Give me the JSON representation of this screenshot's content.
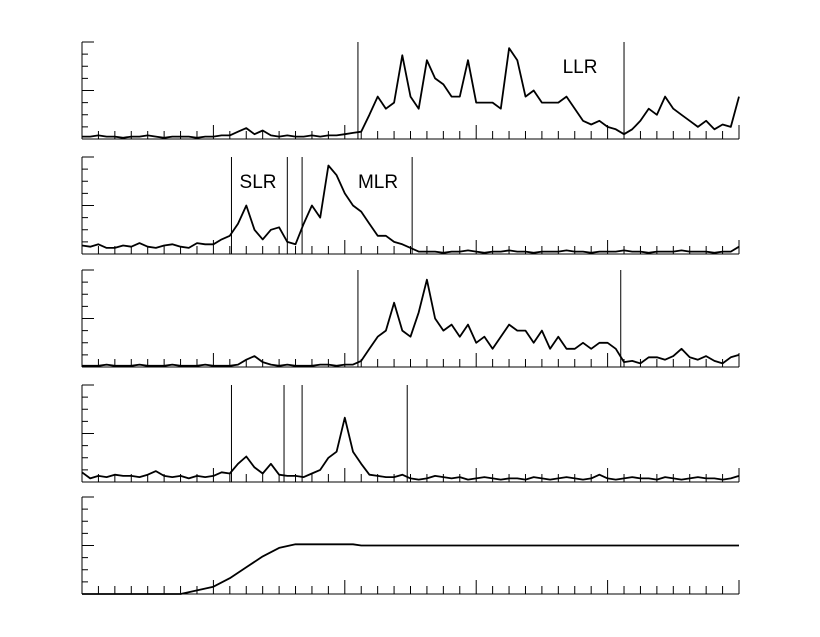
{
  "chart_data": [
    {
      "type": "line",
      "annotations": [
        "LLR"
      ],
      "color": "#000000",
      "markers": [
        16.8,
        33
      ],
      "xlim": [
        0,
        40
      ],
      "ylim": [
        0,
        8
      ],
      "xticks": [
        0,
        1,
        2,
        3,
        4,
        5,
        6,
        7,
        8,
        9,
        10,
        11,
        12,
        13,
        14,
        15,
        16,
        17,
        18,
        19,
        20,
        21,
        22,
        23,
        24,
        25,
        26,
        27,
        28,
        29,
        30,
        31,
        32,
        33,
        34,
        35,
        36,
        37,
        38,
        39,
        40
      ],
      "yticks": [
        0,
        1,
        2,
        3,
        4,
        5,
        6,
        7,
        8
      ],
      "x": [
        0,
        0.5,
        1,
        1.5,
        2,
        2.5,
        3,
        3.5,
        4,
        4.5,
        5,
        5.5,
        6,
        6.5,
        7,
        7.5,
        8,
        8.5,
        9,
        9.5,
        10,
        10.5,
        11,
        11.5,
        12,
        12.5,
        13,
        13.5,
        14,
        14.5,
        15,
        15.5,
        16,
        16.5,
        17,
        17.5,
        18,
        18.5,
        19,
        19.5,
        20,
        20.5,
        21,
        21.5,
        22,
        22.5,
        23,
        23.5,
        24,
        24.5,
        25,
        25.5,
        26,
        26.5,
        27,
        27.5,
        28,
        28.5,
        29,
        29.5,
        30,
        30.5,
        31,
        31.5,
        32,
        32.5,
        33,
        33.5,
        34,
        34.5,
        35,
        35.5,
        36,
        36.5,
        37,
        37.5,
        38,
        38.5,
        39,
        39.5,
        40
      ],
      "values": [
        0.2,
        0.2,
        0.3,
        0.2,
        0.2,
        0.1,
        0.2,
        0.2,
        0.3,
        0.2,
        0.1,
        0.2,
        0.2,
        0.2,
        0.1,
        0.2,
        0.2,
        0.3,
        0.3,
        0.6,
        0.9,
        0.4,
        0.7,
        0.3,
        0.2,
        0.3,
        0.2,
        0.2,
        0.3,
        0.2,
        0.3,
        0.3,
        0.4,
        0.5,
        0.6,
        2,
        3.5,
        2.5,
        3,
        6.9,
        3.5,
        2.5,
        6.5,
        5,
        4.5,
        3.5,
        3.5,
        6.5,
        3,
        3,
        3,
        2.5,
        7.5,
        6.5,
        3.5,
        4,
        3,
        3,
        3,
        3.5,
        2.5,
        1.5,
        1.2,
        1.5,
        1,
        0.8,
        0.4,
        0.8,
        1.5,
        2.5,
        2,
        3.5,
        2.5,
        2,
        1.5,
        1,
        1.5,
        0.8,
        1.2,
        1,
        3.5
      ]
    },
    {
      "type": "line",
      "annotations": [
        "SLR",
        "MLR"
      ],
      "color": "#000000",
      "markers": [
        9.1,
        12.5,
        13.4,
        20.1
      ],
      "xlim": [
        0,
        40
      ],
      "ylim": [
        0,
        8
      ],
      "xticks": [
        0,
        1,
        2,
        3,
        4,
        5,
        6,
        7,
        8,
        9,
        10,
        11,
        12,
        13,
        14,
        15,
        16,
        17,
        18,
        19,
        20,
        21,
        22,
        23,
        24,
        25,
        26,
        27,
        28,
        29,
        30,
        31,
        32,
        33,
        34,
        35,
        36,
        37,
        38,
        39,
        40
      ],
      "yticks": [
        0,
        1,
        2,
        3,
        4,
        5,
        6,
        7,
        8
      ],
      "x": [
        0,
        0.5,
        1,
        1.5,
        2,
        2.5,
        3,
        3.5,
        4,
        4.5,
        5,
        5.5,
        6,
        6.5,
        7,
        7.5,
        8,
        8.5,
        9,
        9.5,
        10,
        10.5,
        11,
        11.5,
        12,
        12.5,
        13,
        13.5,
        14,
        14.5,
        15,
        15.5,
        16,
        16.5,
        17,
        17.5,
        18,
        18.5,
        19,
        19.5,
        20,
        20.5,
        21,
        21.5,
        22,
        22.5,
        23,
        23.5,
        24,
        24.5,
        25,
        25.5,
        26,
        26.5,
        27,
        27.5,
        28,
        28.5,
        29,
        29.5,
        30,
        30.5,
        31,
        31.5,
        32,
        32.5,
        33,
        33.5,
        34,
        34.5,
        35,
        35.5,
        36,
        36.5,
        37,
        37.5,
        38,
        38.5,
        39,
        39.5,
        40
      ],
      "values": [
        0.7,
        0.6,
        0.8,
        0.5,
        0.5,
        0.7,
        0.6,
        0.9,
        0.6,
        0.5,
        0.7,
        0.8,
        0.6,
        0.5,
        0.9,
        0.8,
        0.8,
        1.2,
        1.5,
        2.5,
        4,
        2,
        1.2,
        2,
        2.2,
        1,
        0.8,
        2.5,
        4,
        3,
        7.3,
        6.5,
        5,
        4,
        3.5,
        2.5,
        1.5,
        1.5,
        1,
        0.8,
        0.5,
        0.2,
        0.2,
        0.2,
        0.1,
        0.2,
        0.2,
        0.3,
        0.2,
        0.1,
        0.2,
        0.2,
        0.3,
        0.2,
        0.2,
        0.1,
        0.2,
        0.2,
        0.2,
        0.3,
        0.2,
        0.2,
        0.1,
        0.2,
        0.2,
        0.2,
        0.3,
        0.2,
        0.2,
        0.1,
        0.2,
        0.2,
        0.2,
        0.3,
        0.2,
        0.2,
        0.2,
        0.1,
        0.2,
        0.2,
        0.6
      ]
    },
    {
      "type": "line",
      "color": "#000000",
      "markers": [
        16.8,
        32.8
      ],
      "xlim": [
        0,
        40
      ],
      "ylim": [
        0,
        8
      ],
      "xticks": [
        0,
        1,
        2,
        3,
        4,
        5,
        6,
        7,
        8,
        9,
        10,
        11,
        12,
        13,
        14,
        15,
        16,
        17,
        18,
        19,
        20,
        21,
        22,
        23,
        24,
        25,
        26,
        27,
        28,
        29,
        30,
        31,
        32,
        33,
        34,
        35,
        36,
        37,
        38,
        39,
        40
      ],
      "yticks": [
        0,
        1,
        2,
        3,
        4,
        5,
        6,
        7,
        8
      ],
      "x": [
        0,
        0.5,
        1,
        1.5,
        2,
        2.5,
        3,
        3.5,
        4,
        4.5,
        5,
        5.5,
        6,
        6.5,
        7,
        7.5,
        8,
        8.5,
        9,
        9.5,
        10,
        10.5,
        11,
        11.5,
        12,
        12.5,
        13,
        13.5,
        14,
        14.5,
        15,
        15.5,
        16,
        16.5,
        17,
        17.5,
        18,
        18.5,
        19,
        19.5,
        20,
        20.5,
        21,
        21.5,
        22,
        22.5,
        23,
        23.5,
        24,
        24.5,
        25,
        25.5,
        26,
        26.5,
        27,
        27.5,
        28,
        28.5,
        29,
        29.5,
        30,
        30.5,
        31,
        31.5,
        32,
        32.5,
        33,
        33.5,
        34,
        34.5,
        35,
        35.5,
        36,
        36.5,
        37,
        37.5,
        38,
        38.5,
        39,
        39.5,
        40
      ],
      "values": [
        0.1,
        0.1,
        0.1,
        0.2,
        0.1,
        0.1,
        0.1,
        0.2,
        0.1,
        0.1,
        0.1,
        0.2,
        0.1,
        0.1,
        0.1,
        0.2,
        0.1,
        0.1,
        0.1,
        0.2,
        0.6,
        0.9,
        0.4,
        0.2,
        0.1,
        0.2,
        0.1,
        0.1,
        0.1,
        0.2,
        0.2,
        0.1,
        0.2,
        0.2,
        0.5,
        1.5,
        2.5,
        3,
        5.3,
        3,
        2.5,
        4.5,
        7.2,
        4,
        3,
        3.5,
        2.5,
        3.5,
        2,
        2.5,
        1.5,
        2.5,
        3.5,
        3,
        3,
        2,
        3,
        1.5,
        2.5,
        1.5,
        1.5,
        2,
        1.5,
        2,
        2,
        1.5,
        0.4,
        0.5,
        0.3,
        0.8,
        0.8,
        0.6,
        0.9,
        1.5,
        0.8,
        0.6,
        0.9,
        0.5,
        0.3,
        0.8,
        1
      ]
    },
    {
      "type": "line",
      "color": "#000000",
      "markers": [
        9.1,
        12.3,
        13.4,
        19.8
      ],
      "xlim": [
        0,
        40
      ],
      "ylim": [
        0,
        8
      ],
      "xticks": [
        0,
        1,
        2,
        3,
        4,
        5,
        6,
        7,
        8,
        9,
        10,
        11,
        12,
        13,
        14,
        15,
        16,
        17,
        18,
        19,
        20,
        21,
        22,
        23,
        24,
        25,
        26,
        27,
        28,
        29,
        30,
        31,
        32,
        33,
        34,
        35,
        36,
        37,
        38,
        39,
        40
      ],
      "yticks": [
        0,
        1,
        2,
        3,
        4,
        5,
        6,
        7,
        8
      ],
      "x": [
        0,
        0.5,
        1,
        1.5,
        2,
        2.5,
        3,
        3.5,
        4,
        4.5,
        5,
        5.5,
        6,
        6.5,
        7,
        7.5,
        8,
        8.5,
        9,
        9.5,
        10,
        10.5,
        11,
        11.5,
        12,
        12.5,
        13,
        13.5,
        14,
        14.5,
        15,
        15.5,
        16,
        16.5,
        17,
        17.5,
        18,
        18.5,
        19,
        19.5,
        20,
        20.5,
        21,
        21.5,
        22,
        22.5,
        23,
        23.5,
        24,
        24.5,
        25,
        25.5,
        26,
        26.5,
        27,
        27.5,
        28,
        28.5,
        29,
        29.5,
        30,
        30.5,
        31,
        31.5,
        32,
        32.5,
        33,
        33.5,
        34,
        34.5,
        35,
        35.5,
        36,
        36.5,
        37,
        37.5,
        38,
        38.5,
        39,
        39.5,
        40
      ],
      "values": [
        0.8,
        0.3,
        0.5,
        0.4,
        0.6,
        0.5,
        0.5,
        0.4,
        0.6,
        0.9,
        0.5,
        0.4,
        0.5,
        0.3,
        0.5,
        0.4,
        0.5,
        0.8,
        0.7,
        1.5,
        2.1,
        1.2,
        0.7,
        1.5,
        0.6,
        0.5,
        0.5,
        0.4,
        0.7,
        1,
        2,
        2.5,
        5.3,
        2.5,
        1.5,
        0.6,
        0.5,
        0.4,
        0.4,
        0.6,
        0.3,
        0.2,
        0.3,
        0.5,
        0.4,
        0.3,
        0.4,
        0.2,
        0.3,
        0.4,
        0.3,
        0.2,
        0.3,
        0.3,
        0.2,
        0.4,
        0.3,
        0.2,
        0.3,
        0.4,
        0.3,
        0.2,
        0.3,
        0.6,
        0.3,
        0.2,
        0.3,
        0.4,
        0.3,
        0.3,
        0.2,
        0.4,
        0.3,
        0.2,
        0.3,
        0.4,
        0.3,
        0.3,
        0.2,
        0.3,
        0.5
      ]
    },
    {
      "type": "line",
      "color": "#000000",
      "markers": [],
      "xlim": [
        0,
        40
      ],
      "ylim": [
        0,
        8
      ],
      "xticks": [
        0,
        1,
        2,
        3,
        4,
        5,
        6,
        7,
        8,
        9,
        10,
        11,
        12,
        13,
        14,
        15,
        16,
        17,
        18,
        19,
        20,
        21,
        22,
        23,
        24,
        25,
        26,
        27,
        28,
        29,
        30,
        31,
        32,
        33,
        34,
        35,
        36,
        37,
        38,
        39,
        40
      ],
      "yticks": [
        0,
        1,
        2,
        3,
        4,
        5,
        6,
        7,
        8
      ],
      "x": [
        0,
        6,
        7,
        8,
        9,
        10,
        11,
        12,
        13,
        16.5,
        17,
        40
      ],
      "values": [
        0,
        0,
        0.3,
        0.6,
        1.3,
        2.2,
        3.1,
        3.8,
        4.1,
        4.1,
        4,
        4
      ]
    }
  ]
}
